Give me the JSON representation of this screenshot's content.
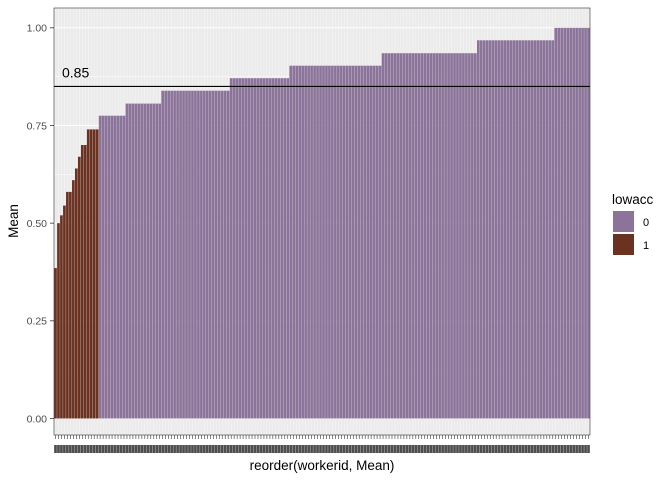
{
  "chart_data": {
    "type": "bar",
    "xlabel": "reorder(workerid, Mean)",
    "ylabel": "Mean",
    "ylim": [
      0,
      1.05
    ],
    "yticks": [
      0.0,
      0.25,
      0.5,
      0.75,
      1.0
    ],
    "ytick_labels": [
      "0.00",
      "0.25",
      "0.50",
      "0.75",
      "1.00"
    ],
    "grid": true,
    "reference_line": {
      "y": 0.85,
      "label": "0.85"
    },
    "legend": {
      "title": "lowacc",
      "position": "right",
      "entries": [
        {
          "label": "0",
          "color": "#8b7399"
        },
        {
          "label": "1",
          "color": "#6b3222"
        }
      ]
    },
    "colors": {
      "0": "#8b7399",
      "1": "#6b3222",
      "panel": "#ebebeb",
      "grid": "#ffffff"
    },
    "bars": [
      {
        "value": 0.385,
        "group": "1"
      },
      {
        "value": 0.5,
        "group": "1"
      },
      {
        "value": 0.52,
        "group": "1"
      },
      {
        "value": 0.545,
        "group": "1"
      },
      {
        "value": 0.58,
        "group": "1"
      },
      {
        "value": 0.58,
        "group": "1"
      },
      {
        "value": 0.61,
        "group": "1"
      },
      {
        "value": 0.64,
        "group": "1"
      },
      {
        "value": 0.67,
        "group": "1"
      },
      {
        "value": 0.7,
        "group": "1"
      },
      {
        "value": 0.7,
        "group": "1"
      },
      {
        "value": 0.74,
        "group": "1"
      },
      {
        "value": 0.74,
        "group": "1"
      },
      {
        "value": 0.74,
        "group": "1"
      },
      {
        "value": 0.74,
        "group": "1"
      },
      {
        "value": 0.775,
        "group": "0"
      },
      {
        "value": 0.775,
        "group": "0"
      },
      {
        "value": 0.775,
        "group": "0"
      },
      {
        "value": 0.775,
        "group": "0"
      },
      {
        "value": 0.775,
        "group": "0"
      },
      {
        "value": 0.775,
        "group": "0"
      },
      {
        "value": 0.775,
        "group": "0"
      },
      {
        "value": 0.775,
        "group": "0"
      },
      {
        "value": 0.775,
        "group": "0"
      },
      {
        "value": 0.806,
        "group": "0"
      },
      {
        "value": 0.806,
        "group": "0"
      },
      {
        "value": 0.806,
        "group": "0"
      },
      {
        "value": 0.806,
        "group": "0"
      },
      {
        "value": 0.806,
        "group": "0"
      },
      {
        "value": 0.806,
        "group": "0"
      },
      {
        "value": 0.806,
        "group": "0"
      },
      {
        "value": 0.806,
        "group": "0"
      },
      {
        "value": 0.806,
        "group": "0"
      },
      {
        "value": 0.806,
        "group": "0"
      },
      {
        "value": 0.806,
        "group": "0"
      },
      {
        "value": 0.806,
        "group": "0"
      },
      {
        "value": 0.839,
        "group": "0"
      },
      {
        "value": 0.839,
        "group": "0"
      },
      {
        "value": 0.839,
        "group": "0"
      },
      {
        "value": 0.839,
        "group": "0"
      },
      {
        "value": 0.839,
        "group": "0"
      },
      {
        "value": 0.839,
        "group": "0"
      },
      {
        "value": 0.839,
        "group": "0"
      },
      {
        "value": 0.839,
        "group": "0"
      },
      {
        "value": 0.839,
        "group": "0"
      },
      {
        "value": 0.839,
        "group": "0"
      },
      {
        "value": 0.839,
        "group": "0"
      },
      {
        "value": 0.839,
        "group": "0"
      },
      {
        "value": 0.839,
        "group": "0"
      },
      {
        "value": 0.839,
        "group": "0"
      },
      {
        "value": 0.839,
        "group": "0"
      },
      {
        "value": 0.839,
        "group": "0"
      },
      {
        "value": 0.839,
        "group": "0"
      },
      {
        "value": 0.839,
        "group": "0"
      },
      {
        "value": 0.839,
        "group": "0"
      },
      {
        "value": 0.839,
        "group": "0"
      },
      {
        "value": 0.839,
        "group": "0"
      },
      {
        "value": 0.839,
        "group": "0"
      },
      {
        "value": 0.839,
        "group": "0"
      },
      {
        "value": 0.871,
        "group": "0"
      },
      {
        "value": 0.871,
        "group": "0"
      },
      {
        "value": 0.871,
        "group": "0"
      },
      {
        "value": 0.871,
        "group": "0"
      },
      {
        "value": 0.871,
        "group": "0"
      },
      {
        "value": 0.871,
        "group": "0"
      },
      {
        "value": 0.871,
        "group": "0"
      },
      {
        "value": 0.871,
        "group": "0"
      },
      {
        "value": 0.871,
        "group": "0"
      },
      {
        "value": 0.871,
        "group": "0"
      },
      {
        "value": 0.871,
        "group": "0"
      },
      {
        "value": 0.871,
        "group": "0"
      },
      {
        "value": 0.871,
        "group": "0"
      },
      {
        "value": 0.871,
        "group": "0"
      },
      {
        "value": 0.871,
        "group": "0"
      },
      {
        "value": 0.871,
        "group": "0"
      },
      {
        "value": 0.871,
        "group": "0"
      },
      {
        "value": 0.871,
        "group": "0"
      },
      {
        "value": 0.871,
        "group": "0"
      },
      {
        "value": 0.871,
        "group": "0"
      },
      {
        "value": 0.903,
        "group": "0"
      },
      {
        "value": 0.903,
        "group": "0"
      },
      {
        "value": 0.903,
        "group": "0"
      },
      {
        "value": 0.903,
        "group": "0"
      },
      {
        "value": 0.903,
        "group": "0"
      },
      {
        "value": 0.903,
        "group": "0"
      },
      {
        "value": 0.903,
        "group": "0"
      },
      {
        "value": 0.903,
        "group": "0"
      },
      {
        "value": 0.903,
        "group": "0"
      },
      {
        "value": 0.903,
        "group": "0"
      },
      {
        "value": 0.903,
        "group": "0"
      },
      {
        "value": 0.903,
        "group": "0"
      },
      {
        "value": 0.903,
        "group": "0"
      },
      {
        "value": 0.903,
        "group": "0"
      },
      {
        "value": 0.903,
        "group": "0"
      },
      {
        "value": 0.903,
        "group": "0"
      },
      {
        "value": 0.903,
        "group": "0"
      },
      {
        "value": 0.903,
        "group": "0"
      },
      {
        "value": 0.903,
        "group": "0"
      },
      {
        "value": 0.903,
        "group": "0"
      },
      {
        "value": 0.903,
        "group": "0"
      },
      {
        "value": 0.903,
        "group": "0"
      },
      {
        "value": 0.903,
        "group": "0"
      },
      {
        "value": 0.903,
        "group": "0"
      },
      {
        "value": 0.903,
        "group": "0"
      },
      {
        "value": 0.903,
        "group": "0"
      },
      {
        "value": 0.903,
        "group": "0"
      },
      {
        "value": 0.903,
        "group": "0"
      },
      {
        "value": 0.903,
        "group": "0"
      },
      {
        "value": 0.903,
        "group": "0"
      },
      {
        "value": 0.903,
        "group": "0"
      },
      {
        "value": 0.935,
        "group": "0"
      },
      {
        "value": 0.935,
        "group": "0"
      },
      {
        "value": 0.935,
        "group": "0"
      },
      {
        "value": 0.935,
        "group": "0"
      },
      {
        "value": 0.935,
        "group": "0"
      },
      {
        "value": 0.935,
        "group": "0"
      },
      {
        "value": 0.935,
        "group": "0"
      },
      {
        "value": 0.935,
        "group": "0"
      },
      {
        "value": 0.935,
        "group": "0"
      },
      {
        "value": 0.935,
        "group": "0"
      },
      {
        "value": 0.935,
        "group": "0"
      },
      {
        "value": 0.935,
        "group": "0"
      },
      {
        "value": 0.935,
        "group": "0"
      },
      {
        "value": 0.935,
        "group": "0"
      },
      {
        "value": 0.935,
        "group": "0"
      },
      {
        "value": 0.935,
        "group": "0"
      },
      {
        "value": 0.935,
        "group": "0"
      },
      {
        "value": 0.935,
        "group": "0"
      },
      {
        "value": 0.935,
        "group": "0"
      },
      {
        "value": 0.935,
        "group": "0"
      },
      {
        "value": 0.935,
        "group": "0"
      },
      {
        "value": 0.935,
        "group": "0"
      },
      {
        "value": 0.935,
        "group": "0"
      },
      {
        "value": 0.935,
        "group": "0"
      },
      {
        "value": 0.935,
        "group": "0"
      },
      {
        "value": 0.935,
        "group": "0"
      },
      {
        "value": 0.935,
        "group": "0"
      },
      {
        "value": 0.935,
        "group": "0"
      },
      {
        "value": 0.935,
        "group": "0"
      },
      {
        "value": 0.935,
        "group": "0"
      },
      {
        "value": 0.935,
        "group": "0"
      },
      {
        "value": 0.935,
        "group": "0"
      },
      {
        "value": 0.968,
        "group": "0"
      },
      {
        "value": 0.968,
        "group": "0"
      },
      {
        "value": 0.968,
        "group": "0"
      },
      {
        "value": 0.968,
        "group": "0"
      },
      {
        "value": 0.968,
        "group": "0"
      },
      {
        "value": 0.968,
        "group": "0"
      },
      {
        "value": 0.968,
        "group": "0"
      },
      {
        "value": 0.968,
        "group": "0"
      },
      {
        "value": 0.968,
        "group": "0"
      },
      {
        "value": 0.968,
        "group": "0"
      },
      {
        "value": 0.968,
        "group": "0"
      },
      {
        "value": 0.968,
        "group": "0"
      },
      {
        "value": 0.968,
        "group": "0"
      },
      {
        "value": 0.968,
        "group": "0"
      },
      {
        "value": 0.968,
        "group": "0"
      },
      {
        "value": 0.968,
        "group": "0"
      },
      {
        "value": 0.968,
        "group": "0"
      },
      {
        "value": 0.968,
        "group": "0"
      },
      {
        "value": 0.968,
        "group": "0"
      },
      {
        "value": 0.968,
        "group": "0"
      },
      {
        "value": 0.968,
        "group": "0"
      },
      {
        "value": 0.968,
        "group": "0"
      },
      {
        "value": 0.968,
        "group": "0"
      },
      {
        "value": 0.968,
        "group": "0"
      },
      {
        "value": 0.968,
        "group": "0"
      },
      {
        "value": 0.968,
        "group": "0"
      },
      {
        "value": 1.0,
        "group": "0"
      },
      {
        "value": 1.0,
        "group": "0"
      },
      {
        "value": 1.0,
        "group": "0"
      },
      {
        "value": 1.0,
        "group": "0"
      },
      {
        "value": 1.0,
        "group": "0"
      },
      {
        "value": 1.0,
        "group": "0"
      },
      {
        "value": 1.0,
        "group": "0"
      },
      {
        "value": 1.0,
        "group": "0"
      },
      {
        "value": 1.0,
        "group": "0"
      },
      {
        "value": 1.0,
        "group": "0"
      },
      {
        "value": 1.0,
        "group": "0"
      },
      {
        "value": 1.0,
        "group": "0"
      }
    ]
  }
}
